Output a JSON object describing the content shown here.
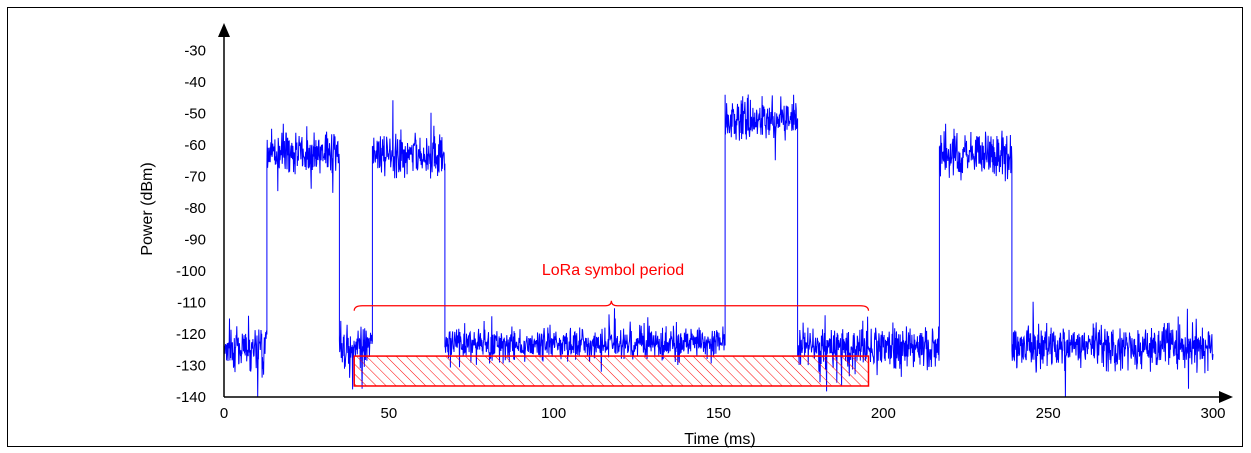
{
  "chart_data": {
    "type": "line",
    "title": "",
    "xlabel": "Time (ms)",
    "ylabel": "Power (dBm)",
    "xlim": [
      0,
      300
    ],
    "ylim": [
      -140,
      -25
    ],
    "xticks": [
      0,
      50,
      100,
      150,
      200,
      250,
      300
    ],
    "yticks": [
      -140,
      -130,
      -120,
      -110,
      -100,
      -90,
      -80,
      -70,
      -60,
      -50,
      -40,
      -30
    ],
    "grid": false,
    "series": [
      {
        "color": "#0000ff",
        "segments": [
          {
            "x_start": 0,
            "x_end": 13,
            "level": -124,
            "noise": 3.5
          },
          {
            "x_start": 13,
            "x_end": 35,
            "level": -62,
            "noise": 3.5
          },
          {
            "x_start": 35,
            "x_end": 45,
            "level": -124,
            "noise": 3.5
          },
          {
            "x_start": 45,
            "x_end": 67,
            "level": -63,
            "noise": 3.5
          },
          {
            "x_start": 67,
            "x_end": 152,
            "level": -123,
            "noise": 2.5
          },
          {
            "x_start": 152,
            "x_end": 174,
            "level": -52,
            "noise": 3.5
          },
          {
            "x_start": 174,
            "x_end": 217,
            "level": -124,
            "noise": 3.5
          },
          {
            "x_start": 217,
            "x_end": 239,
            "level": -63,
            "noise": 3.5
          },
          {
            "x_start": 239,
            "x_end": 300,
            "level": -124,
            "noise": 3.5
          }
        ]
      }
    ],
    "annotations": {
      "label": "LoRa symbol period",
      "color": "#ff0000",
      "brace_x": [
        39.5,
        195.5
      ],
      "brace_y": -111,
      "box_x": [
        39.5,
        195.5
      ],
      "box_y": [
        -136.5,
        -127
      ]
    }
  }
}
